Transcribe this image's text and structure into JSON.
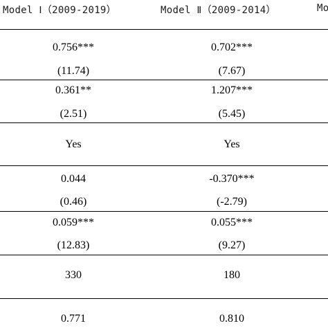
{
  "table": {
    "columns": [
      "Model Ⅰ（2009-2019）",
      "Model Ⅱ（2009-2014）",
      "Mo"
    ],
    "rows": [
      {
        "model1": "0.756***",
        "model2": "0.702***"
      },
      {
        "model1": "(11.74)",
        "model2": "(7.67)"
      },
      {
        "model1": "0.361**",
        "model2": "1.207***"
      },
      {
        "model1": "(2.51)",
        "model2": "(5.45)"
      },
      {
        "model1": "Yes",
        "model2": "Yes"
      },
      {
        "model1": "0.044",
        "model2": "-0.370***"
      },
      {
        "model1": "(0.46)",
        "model2": "(-2.79)"
      },
      {
        "model1": "0.059***",
        "model2": "0.055***"
      },
      {
        "model1": "(12.83)",
        "model2": "(9.27)"
      },
      {
        "model1": "330",
        "model2": "180"
      },
      {
        "model1": "0.771",
        "model2": "0.810"
      }
    ]
  }
}
